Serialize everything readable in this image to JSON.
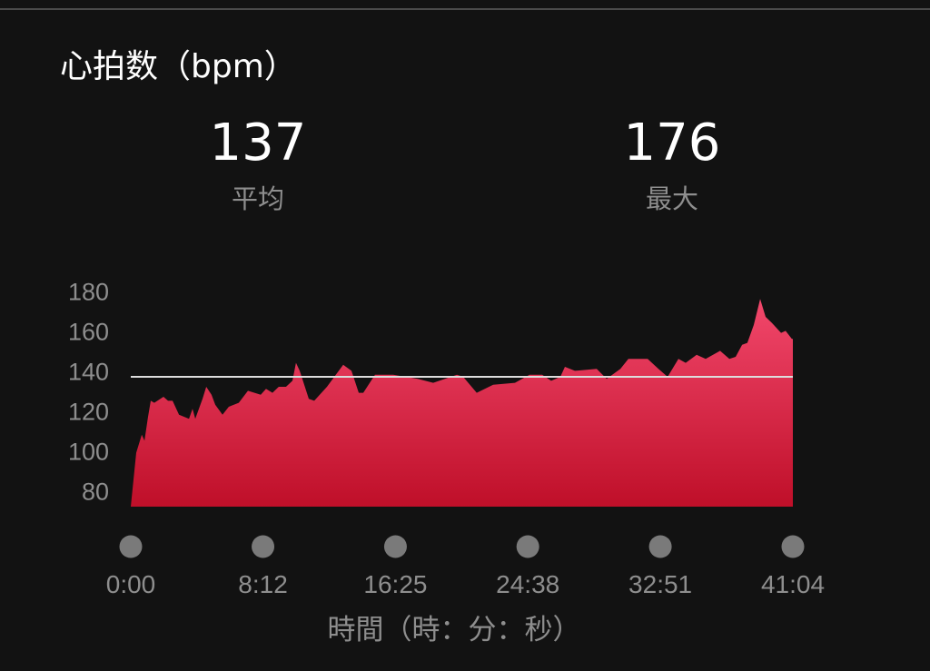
{
  "title": "心拍数（bpm）",
  "stats": [
    {
      "value": "137",
      "label": "平均"
    },
    {
      "value": "176",
      "label": "最大"
    }
  ],
  "colors": {
    "background": "#121212",
    "fill_top": "#f2486c",
    "fill_bottom": "#bf0f29",
    "average_line": "#dddddd",
    "tick_text": "#8e8e8e",
    "dot": "#7a7a7a"
  },
  "chart_data": {
    "type": "area",
    "title": "心拍数（bpm）",
    "xlabel": "時間（時：分：秒）",
    "ylabel": "",
    "xlim_minutes": [
      0,
      41.07
    ],
    "ylim": [
      72,
      180
    ],
    "y_ticks": [
      "180",
      "160",
      "140",
      "120",
      "100",
      "80"
    ],
    "y_tick_values": [
      180,
      160,
      140,
      120,
      100,
      80
    ],
    "x_ticks": [
      "0:00",
      "8:12",
      "16:25",
      "24:38",
      "32:51",
      "41:04"
    ],
    "x_tick_values_minutes": [
      0,
      8.2,
      16.42,
      24.63,
      32.85,
      41.07
    ],
    "average": 137,
    "max": 176,
    "grid": false,
    "series": [
      {
        "x_minutes": [
          0,
          0.34,
          0.68,
          0.85,
          1.07,
          1.24,
          1.46,
          2.03,
          2.31,
          2.59,
          2.99,
          3.61,
          3.83,
          4.0,
          4.45,
          4.68,
          5.01,
          5.24,
          5.69,
          6.08,
          6.7,
          7.27,
          8.06,
          8.39,
          8.79,
          9.18,
          9.63,
          10.03,
          10.25,
          10.48,
          11.04,
          11.38,
          12.17,
          13.18,
          13.69,
          14.14,
          14.42,
          15.15,
          15.55,
          16.28,
          17.8,
          18.76,
          20.23,
          20.62,
          21.46,
          22.48,
          23.83,
          24.73,
          25.52,
          26.08,
          26.65,
          26.93,
          27.55,
          28.9,
          29.52,
          30.37,
          30.87,
          32.06,
          32.73,
          33.3,
          33.97,
          34.42,
          35.1,
          35.66,
          36.56,
          37.13,
          37.52,
          37.92,
          38.25,
          38.65,
          39.04,
          39.38,
          39.77,
          40.34,
          40.62,
          41.01,
          41.07
        ],
        "bpm": [
          72,
          99,
          108,
          105,
          117,
          125,
          124,
          127,
          125,
          125,
          118,
          116,
          121,
          116,
          126,
          132,
          128,
          123,
          118,
          122,
          124,
          130,
          128,
          131,
          129,
          132,
          132,
          135,
          144,
          140,
          126,
          125,
          132,
          143,
          140,
          129,
          129,
          138,
          138,
          138,
          136,
          134,
          138,
          137,
          129,
          133,
          134,
          138,
          138,
          135,
          137,
          142,
          140,
          141,
          136,
          141,
          146,
          146,
          141,
          137,
          146,
          144,
          148,
          146,
          150,
          146,
          147,
          153,
          154,
          163,
          176,
          167,
          164,
          159,
          160,
          156,
          156
        ]
      }
    ]
  }
}
